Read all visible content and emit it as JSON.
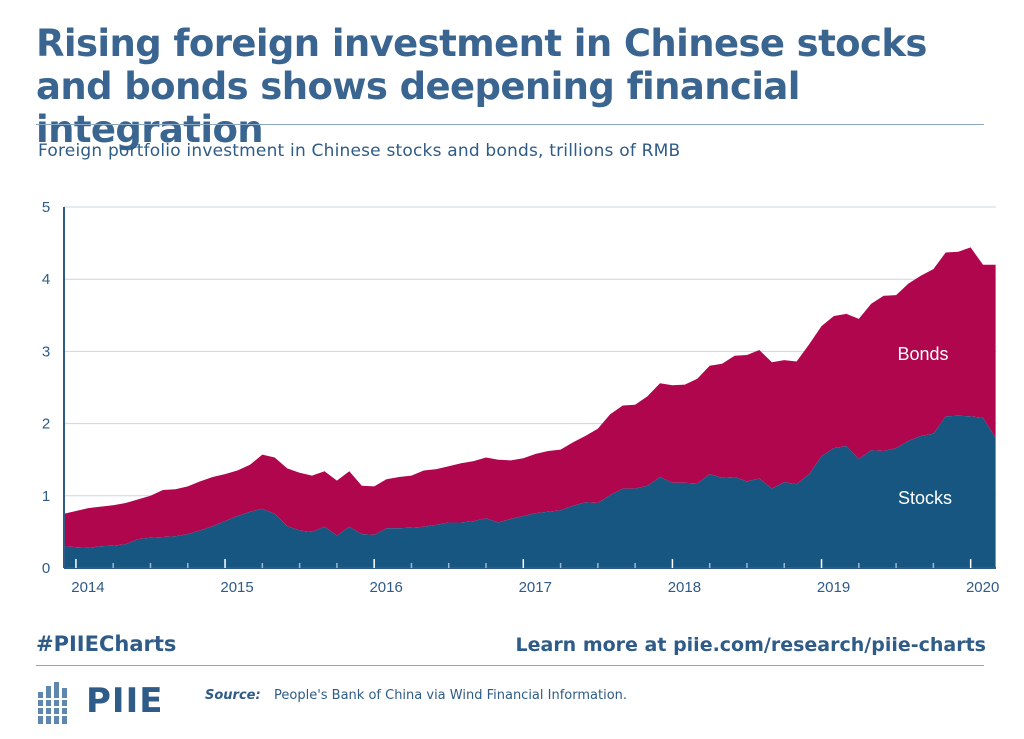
{
  "header": {
    "title": "Rising foreign investment in Chinese stocks and bonds shows deepening financial integration",
    "subtitle": "Foreign portfolio investment in Chinese stocks and bonds, trillions of RMB"
  },
  "footer": {
    "hashtag": "#PIIECharts",
    "learn_more": "Learn more at piie.com/research/piie-charts",
    "logo_text": "PIIE",
    "source_label": "Source:",
    "source_text": "People's Bank of China via Wind Financial Information."
  },
  "colors": {
    "stocks": "#175680",
    "bonds": "#b0064e",
    "text": "#2e5b87",
    "grid": "#c9d6e3"
  },
  "chart_data": {
    "type": "area",
    "stacked": true,
    "xlabel": "",
    "ylabel": "",
    "ylim": [
      0,
      5
    ],
    "xlim": [
      2013.92,
      2020.17
    ],
    "yticks": [
      "0",
      "1",
      "2",
      "3",
      "4",
      "5"
    ],
    "xticks": [
      "2014",
      "2015",
      "2016",
      "2017",
      "2018",
      "2019",
      "2020"
    ],
    "grid": true,
    "x": [
      2013.917,
      2014.0,
      2014.083,
      2014.167,
      2014.25,
      2014.333,
      2014.417,
      2014.5,
      2014.583,
      2014.667,
      2014.75,
      2014.833,
      2014.917,
      2015.0,
      2015.083,
      2015.167,
      2015.25,
      2015.333,
      2015.417,
      2015.5,
      2015.583,
      2015.667,
      2015.75,
      2015.833,
      2015.917,
      2016.0,
      2016.083,
      2016.167,
      2016.25,
      2016.333,
      2016.417,
      2016.5,
      2016.583,
      2016.667,
      2016.75,
      2016.833,
      2016.917,
      2017.0,
      2017.083,
      2017.167,
      2017.25,
      2017.333,
      2017.417,
      2017.5,
      2017.583,
      2017.667,
      2017.75,
      2017.833,
      2017.917,
      2018.0,
      2018.083,
      2018.167,
      2018.25,
      2018.333,
      2018.417,
      2018.5,
      2018.583,
      2018.667,
      2018.75,
      2018.833,
      2018.917,
      2019.0,
      2019.083,
      2019.167,
      2019.25,
      2019.333,
      2019.417,
      2019.5,
      2019.583,
      2019.667,
      2019.75,
      2019.833,
      2019.917,
      2020.0,
      2020.083,
      2020.167
    ],
    "series": [
      {
        "name": "Stocks",
        "values": [
          0.3,
          0.29,
          0.28,
          0.3,
          0.31,
          0.33,
          0.4,
          0.42,
          0.43,
          0.44,
          0.47,
          0.52,
          0.58,
          0.65,
          0.72,
          0.78,
          0.82,
          0.75,
          0.58,
          0.52,
          0.5,
          0.57,
          0.45,
          0.57,
          0.47,
          0.46,
          0.55,
          0.55,
          0.56,
          0.57,
          0.6,
          0.63,
          0.63,
          0.65,
          0.69,
          0.63,
          0.68,
          0.72,
          0.76,
          0.78,
          0.8,
          0.86,
          0.91,
          0.9,
          1.01,
          1.1,
          1.1,
          1.14,
          1.26,
          1.18,
          1.18,
          1.17,
          1.3,
          1.25,
          1.26,
          1.2,
          1.24,
          1.1,
          1.19,
          1.16,
          1.3,
          1.55,
          1.66,
          1.69,
          1.51,
          1.63,
          1.62,
          1.66,
          1.76,
          1.83,
          1.86,
          2.1,
          2.11,
          2.1,
          2.08,
          1.8
        ]
      },
      {
        "name": "Bonds",
        "values": [
          0.45,
          0.5,
          0.55,
          0.55,
          0.56,
          0.57,
          0.55,
          0.58,
          0.65,
          0.65,
          0.66,
          0.68,
          0.68,
          0.65,
          0.63,
          0.65,
          0.75,
          0.78,
          0.8,
          0.8,
          0.78,
          0.77,
          0.76,
          0.77,
          0.67,
          0.67,
          0.68,
          0.71,
          0.72,
          0.78,
          0.77,
          0.78,
          0.82,
          0.83,
          0.84,
          0.87,
          0.81,
          0.8,
          0.82,
          0.84,
          0.84,
          0.88,
          0.92,
          1.03,
          1.12,
          1.15,
          1.16,
          1.24,
          1.3,
          1.35,
          1.36,
          1.45,
          1.5,
          1.58,
          1.68,
          1.75,
          1.78,
          1.75,
          1.69,
          1.7,
          1.8,
          1.8,
          1.83,
          1.83,
          1.94,
          2.03,
          2.15,
          2.12,
          2.18,
          2.22,
          2.28,
          2.27,
          2.27,
          2.34,
          2.12,
          2.4
        ]
      }
    ],
    "annotations": [
      "Bonds",
      "Stocks"
    ]
  }
}
